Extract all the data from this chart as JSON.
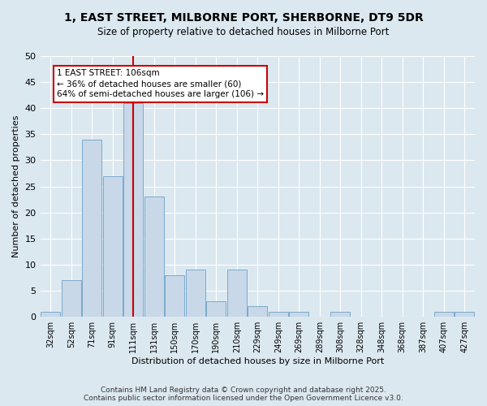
{
  "title": "1, EAST STREET, MILBORNE PORT, SHERBORNE, DT9 5DR",
  "subtitle": "Size of property relative to detached houses in Milborne Port",
  "xlabel": "Distribution of detached houses by size in Milborne Port",
  "ylabel": "Number of detached properties",
  "bar_color": "#c8d8e8",
  "bar_edge_color": "#7aaacc",
  "bins": [
    "32sqm",
    "52sqm",
    "71sqm",
    "91sqm",
    "111sqm",
    "131sqm",
    "150sqm",
    "170sqm",
    "190sqm",
    "210sqm",
    "229sqm",
    "249sqm",
    "269sqm",
    "289sqm",
    "308sqm",
    "328sqm",
    "348sqm",
    "368sqm",
    "387sqm",
    "407sqm",
    "427sqm"
  ],
  "values": [
    1,
    7,
    34,
    27,
    41,
    23,
    8,
    9,
    3,
    9,
    2,
    1,
    1,
    0,
    1,
    0,
    0,
    0,
    0,
    1,
    1
  ],
  "ylim": [
    0,
    50
  ],
  "yticks": [
    0,
    5,
    10,
    15,
    20,
    25,
    30,
    35,
    40,
    45,
    50
  ],
  "property_line_x": 4.0,
  "annotation_text": "1 EAST STREET: 106sqm\n← 36% of detached houses are smaller (60)\n64% of semi-detached houses are larger (106) →",
  "annotation_box_color": "#ffffff",
  "annotation_box_edge": "#cc0000",
  "line_color": "#cc0000",
  "background_color": "#dce8f0",
  "footer": "Contains HM Land Registry data © Crown copyright and database right 2025.\nContains public sector information licensed under the Open Government Licence v3.0.",
  "grid_color": "#ffffff"
}
